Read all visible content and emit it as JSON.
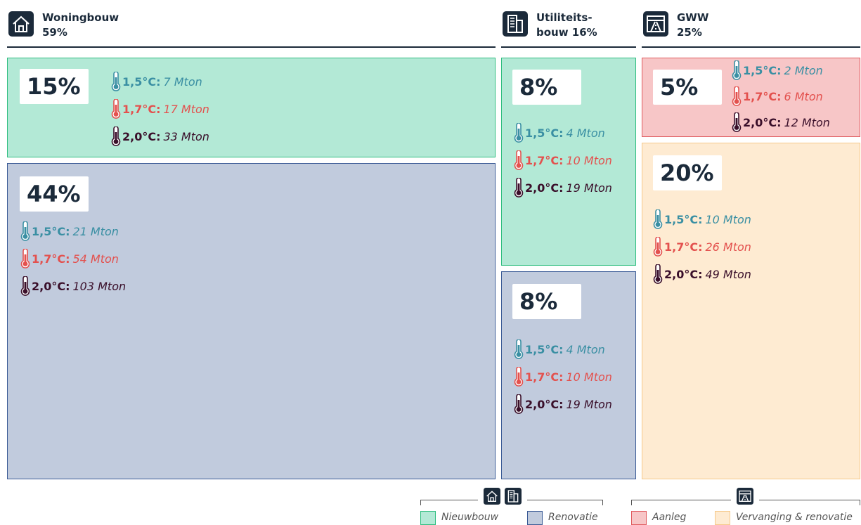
{
  "sectors": [
    {
      "lines": [
        "Woningbouw",
        "59%"
      ],
      "blocks": [
        {
          "share": "15%",
          "kind": "Nieuwbouw",
          "scenarios": [
            {
              "label": "1,5°C:",
              "value": "7 Mton"
            },
            {
              "label": "1,7°C:",
              "value": "17 Mton"
            },
            {
              "label": "2,0°C:",
              "value": "33 Mton"
            }
          ]
        },
        {
          "share": "44%",
          "kind": "Renovatie",
          "scenarios": [
            {
              "label": "1,5°C:",
              "value": "21 Mton"
            },
            {
              "label": "1,7°C:",
              "value": "54 Mton"
            },
            {
              "label": "2,0°C:",
              "value": "103 Mton"
            }
          ]
        }
      ]
    },
    {
      "lines": [
        "Utiliteits-",
        "bouw 16%"
      ],
      "blocks": [
        {
          "share": "8%",
          "kind": "Nieuwbouw",
          "scenarios": [
            {
              "label": "1,5°C:",
              "value": "4 Mton"
            },
            {
              "label": "1,7°C:",
              "value": "10 Mton"
            },
            {
              "label": "2,0°C:",
              "value": "19 Mton"
            }
          ]
        },
        {
          "share": "8%",
          "kind": "Renovatie",
          "scenarios": [
            {
              "label": "1,5°C:",
              "value": "4 Mton"
            },
            {
              "label": "1,7°C:",
              "value": "10 Mton"
            },
            {
              "label": "2,0°C:",
              "value": "19 Mton"
            }
          ]
        }
      ]
    },
    {
      "lines": [
        "GWW",
        "25%"
      ],
      "blocks": [
        {
          "share": "5%",
          "kind": "Aanleg",
          "scenarios": [
            {
              "label": "1,5°C:",
              "value": "2 Mton"
            },
            {
              "label": "1,7°C:",
              "value": "6 Mton"
            },
            {
              "label": "2,0°C:",
              "value": "12 Mton"
            }
          ]
        },
        {
          "share": "20%",
          "kind": "Vervanging & renovatie",
          "scenarios": [
            {
              "label": "1,5°C:",
              "value": "10 Mton"
            },
            {
              "label": "1,7°C:",
              "value": "26 Mton"
            },
            {
              "label": "2,0°C:",
              "value": "49 Mton"
            }
          ]
        }
      ]
    }
  ],
  "legend": [
    "Nieuwbouw",
    "Renovatie",
    "Aanleg",
    "Vervanging & renovatie"
  ]
}
